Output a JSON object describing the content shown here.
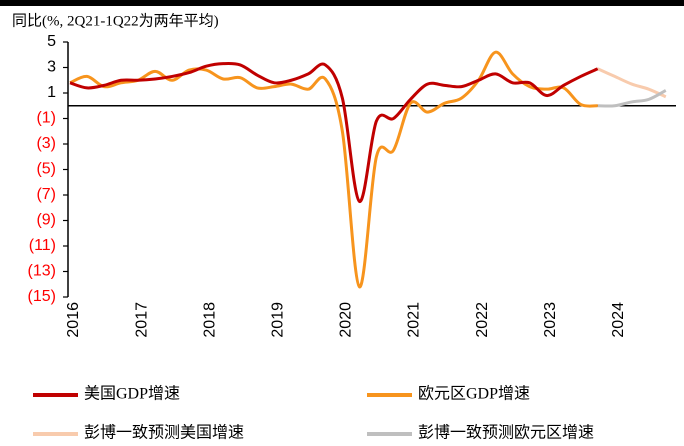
{
  "chart_data": {
    "type": "line",
    "title": "同比(%, 2Q21-1Q22为两年平均)",
    "xlim": [
      2016,
      2024.9
    ],
    "xticks": [
      2016,
      2017,
      2018,
      2019,
      2020,
      2021,
      2022,
      2023,
      2024
    ],
    "ylim": [
      -15,
      5
    ],
    "yticks": [
      5,
      3,
      1,
      {
        "value": -1,
        "label": "(1)"
      },
      {
        "value": -3,
        "label": "(3)"
      },
      {
        "value": -5,
        "label": "(5)"
      },
      {
        "value": -7,
        "label": "(7)"
      },
      {
        "value": -9,
        "label": "(9)"
      },
      {
        "value": -11,
        "label": "(11)"
      },
      {
        "value": -13,
        "label": "(13)"
      },
      {
        "value": -15,
        "label": "(15)"
      }
    ],
    "negative_label_color": "#ff0000",
    "series": [
      {
        "name": "美国GDP增速",
        "color": "#c00000",
        "x": [
          2016,
          2016.25,
          2016.5,
          2016.75,
          2017,
          2017.25,
          2017.5,
          2017.75,
          2018,
          2018.25,
          2018.5,
          2018.75,
          2019,
          2019.25,
          2019.5,
          2019.75,
          2020,
          2020.25,
          2020.5,
          2020.75,
          2021,
          2021.25,
          2021.5,
          2021.75,
          2022,
          2022.25,
          2022.5,
          2022.75,
          2023,
          2023.25,
          2023.5,
          2023.75
        ],
        "values": [
          1.8,
          1.4,
          1.6,
          2.0,
          2.0,
          2.1,
          2.3,
          2.6,
          3.1,
          3.3,
          3.2,
          2.4,
          1.8,
          2.0,
          2.5,
          3.2,
          0.6,
          -7.5,
          -1.2,
          -1.0,
          0.5,
          1.7,
          1.6,
          1.5,
          2.0,
          2.5,
          1.8,
          1.8,
          0.8,
          1.6,
          2.3,
          2.9
        ]
      },
      {
        "name": "欧元区GDP增速",
        "color": "#f7941d",
        "x": [
          2016,
          2016.25,
          2016.5,
          2016.75,
          2017,
          2017.25,
          2017.5,
          2017.75,
          2018,
          2018.25,
          2018.5,
          2018.75,
          2019,
          2019.25,
          2019.5,
          2019.75,
          2020,
          2020.25,
          2020.5,
          2020.75,
          2021,
          2021.25,
          2021.5,
          2021.75,
          2022,
          2022.25,
          2022.5,
          2022.75,
          2023,
          2023.25,
          2023.5,
          2023.75
        ],
        "values": [
          1.8,
          2.3,
          1.5,
          1.8,
          2.0,
          2.7,
          2.0,
          2.8,
          2.8,
          2.1,
          2.2,
          1.4,
          1.5,
          1.7,
          1.3,
          2.1,
          -2.0,
          -14.2,
          -4.0,
          -3.5,
          0.2,
          -0.5,
          0.2,
          0.6,
          2.0,
          4.2,
          2.5,
          1.5,
          1.3,
          1.4,
          0.1,
          0.0
        ]
      },
      {
        "name": "彭博一致预测美国增速",
        "color": "#f8cbad",
        "x": [
          2023.75,
          2024,
          2024.25,
          2024.5,
          2024.75
        ],
        "values": [
          2.9,
          2.3,
          1.7,
          1.3,
          0.7
        ]
      },
      {
        "name": "彭博一致预测欧元区增速",
        "color": "#bfbfbf",
        "x": [
          2023.75,
          2024,
          2024.25,
          2024.5,
          2024.75
        ],
        "values": [
          0.0,
          0.0,
          0.3,
          0.5,
          1.2
        ]
      }
    ]
  }
}
